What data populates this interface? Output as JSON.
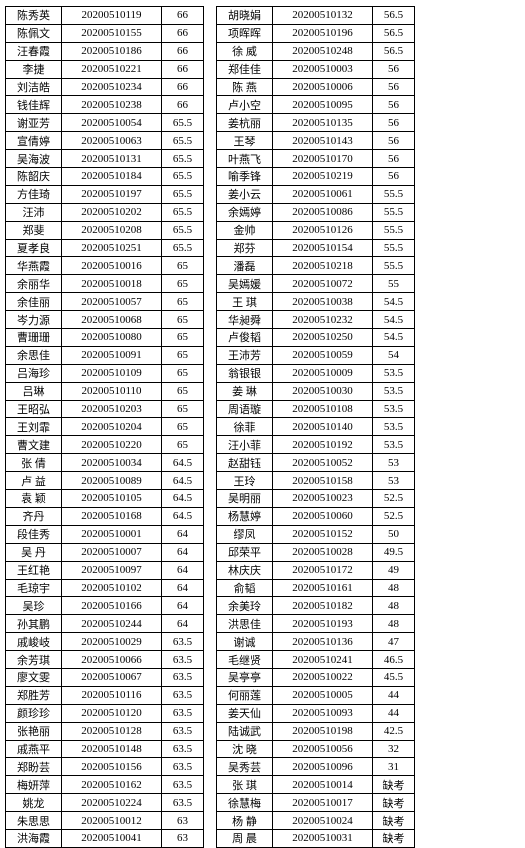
{
  "left": [
    {
      "name": "陈秀英",
      "id": "20200510119",
      "score": "66"
    },
    {
      "name": "陈佩文",
      "id": "20200510155",
      "score": "66"
    },
    {
      "name": "汪春霞",
      "id": "20200510186",
      "score": "66"
    },
    {
      "name": "李捷",
      "id": "20200510221",
      "score": "66"
    },
    {
      "name": "刘洁皓",
      "id": "20200510234",
      "score": "66"
    },
    {
      "name": "钱佳辉",
      "id": "20200510238",
      "score": "66"
    },
    {
      "name": "谢亚芳",
      "id": "20200510054",
      "score": "65.5"
    },
    {
      "name": "宣倩婷",
      "id": "20200510063",
      "score": "65.5"
    },
    {
      "name": "吴海波",
      "id": "20200510131",
      "score": "65.5"
    },
    {
      "name": "陈韶庆",
      "id": "20200510184",
      "score": "65.5"
    },
    {
      "name": "方佳琦",
      "id": "20200510197",
      "score": "65.5"
    },
    {
      "name": "汪沛",
      "id": "20200510202",
      "score": "65.5"
    },
    {
      "name": "郑斐",
      "id": "20200510208",
      "score": "65.5"
    },
    {
      "name": "夏孝良",
      "id": "20200510251",
      "score": "65.5"
    },
    {
      "name": "华燕霞",
      "id": "20200510016",
      "score": "65"
    },
    {
      "name": "余丽华",
      "id": "20200510018",
      "score": "65"
    },
    {
      "name": "余佳丽",
      "id": "20200510057",
      "score": "65"
    },
    {
      "name": "岑力源",
      "id": "20200510068",
      "score": "65"
    },
    {
      "name": "曹珊珊",
      "id": "20200510080",
      "score": "65"
    },
    {
      "name": "余思佳",
      "id": "20200510091",
      "score": "65"
    },
    {
      "name": "吕海珍",
      "id": "20200510109",
      "score": "65"
    },
    {
      "name": "吕琳",
      "id": "20200510110",
      "score": "65"
    },
    {
      "name": "王昭弘",
      "id": "20200510203",
      "score": "65"
    },
    {
      "name": "王刘霏",
      "id": "20200510204",
      "score": "65"
    },
    {
      "name": "曹文建",
      "id": "20200510220",
      "score": "65"
    },
    {
      "name": "张 倩",
      "id": "20200510034",
      "score": "64.5"
    },
    {
      "name": "卢 益",
      "id": "20200510089",
      "score": "64.5"
    },
    {
      "name": "袁 颖",
      "id": "20200510105",
      "score": "64.5"
    },
    {
      "name": "齐丹",
      "id": "20200510168",
      "score": "64.5"
    },
    {
      "name": "段佳秀",
      "id": "20200510001",
      "score": "64"
    },
    {
      "name": "吴 丹",
      "id": "20200510007",
      "score": "64"
    },
    {
      "name": "王红艳",
      "id": "20200510097",
      "score": "64"
    },
    {
      "name": "毛琼宇",
      "id": "20200510102",
      "score": "64"
    },
    {
      "name": "吴珍",
      "id": "20200510166",
      "score": "64"
    },
    {
      "name": "孙其鹏",
      "id": "20200510244",
      "score": "64"
    },
    {
      "name": "戚峻岐",
      "id": "20200510029",
      "score": "63.5"
    },
    {
      "name": "余芳琪",
      "id": "20200510066",
      "score": "63.5"
    },
    {
      "name": "廖文雯",
      "id": "20200510067",
      "score": "63.5"
    },
    {
      "name": "郑胜芳",
      "id": "20200510116",
      "score": "63.5"
    },
    {
      "name": "颜珍珍",
      "id": "20200510120",
      "score": "63.5"
    },
    {
      "name": "张艳丽",
      "id": "20200510128",
      "score": "63.5"
    },
    {
      "name": "戚燕平",
      "id": "20200510148",
      "score": "63.5"
    },
    {
      "name": "郑盼芸",
      "id": "20200510156",
      "score": "63.5"
    },
    {
      "name": "梅妍萍",
      "id": "20200510162",
      "score": "63.5"
    },
    {
      "name": "姚龙",
      "id": "20200510224",
      "score": "63.5"
    },
    {
      "name": "朱思思",
      "id": "20200510012",
      "score": "63"
    },
    {
      "name": "洪海霞",
      "id": "20200510041",
      "score": "63"
    }
  ],
  "right": [
    {
      "name": "胡晓娟",
      "id": "20200510132",
      "score": "56.5"
    },
    {
      "name": "项晖晖",
      "id": "20200510196",
      "score": "56.5"
    },
    {
      "name": "徐 威",
      "id": "20200510248",
      "score": "56.5"
    },
    {
      "name": "郑佳佳",
      "id": "20200510003",
      "score": "56"
    },
    {
      "name": "陈 燕",
      "id": "20200510006",
      "score": "56"
    },
    {
      "name": "卢小空",
      "id": "20200510095",
      "score": "56"
    },
    {
      "name": "姜杭丽",
      "id": "20200510135",
      "score": "56"
    },
    {
      "name": "王琴",
      "id": "20200510143",
      "score": "56"
    },
    {
      "name": "叶燕飞",
      "id": "20200510170",
      "score": "56"
    },
    {
      "name": "喻季锋",
      "id": "20200510219",
      "score": "56"
    },
    {
      "name": "姜小云",
      "id": "20200510061",
      "score": "55.5"
    },
    {
      "name": "余嫣婷",
      "id": "20200510086",
      "score": "55.5"
    },
    {
      "name": "金帅",
      "id": "20200510126",
      "score": "55.5"
    },
    {
      "name": "郑芬",
      "id": "20200510154",
      "score": "55.5"
    },
    {
      "name": "潘磊",
      "id": "20200510218",
      "score": "55.5"
    },
    {
      "name": "吴嫣媛",
      "id": "20200510072",
      "score": "55"
    },
    {
      "name": "王 琪",
      "id": "20200510038",
      "score": "54.5"
    },
    {
      "name": "华昶舜",
      "id": "20200510232",
      "score": "54.5"
    },
    {
      "name": "卢俊韬",
      "id": "20200510250",
      "score": "54.5"
    },
    {
      "name": "王沛芳",
      "id": "20200510059",
      "score": "54"
    },
    {
      "name": "翁银银",
      "id": "20200510009",
      "score": "53.5"
    },
    {
      "name": "姜 琳",
      "id": "20200510030",
      "score": "53.5"
    },
    {
      "name": "周语璇",
      "id": "20200510108",
      "score": "53.5"
    },
    {
      "name": "徐菲",
      "id": "20200510140",
      "score": "53.5"
    },
    {
      "name": "汪小菲",
      "id": "20200510192",
      "score": "53.5"
    },
    {
      "name": "赵甜钰",
      "id": "20200510052",
      "score": "53"
    },
    {
      "name": "王玲",
      "id": "20200510158",
      "score": "53"
    },
    {
      "name": "吴明丽",
      "id": "20200510023",
      "score": "52.5"
    },
    {
      "name": "杨慧婷",
      "id": "20200510060",
      "score": "52.5"
    },
    {
      "name": "缪凤",
      "id": "20200510152",
      "score": "50"
    },
    {
      "name": "邱荣平",
      "id": "20200510028",
      "score": "49.5"
    },
    {
      "name": "林庆庆",
      "id": "20200510172",
      "score": "49"
    },
    {
      "name": "俞韬",
      "id": "20200510161",
      "score": "48"
    },
    {
      "name": "余美玲",
      "id": "20200510182",
      "score": "48"
    },
    {
      "name": "洪思佳",
      "id": "20200510193",
      "score": "48"
    },
    {
      "name": "谢诚",
      "id": "20200510136",
      "score": "47"
    },
    {
      "name": "毛继贤",
      "id": "20200510241",
      "score": "46.5"
    },
    {
      "name": "吴亭亭",
      "id": "20200510022",
      "score": "45.5"
    },
    {
      "name": "何丽莲",
      "id": "20200510005",
      "score": "44"
    },
    {
      "name": "姜天仙",
      "id": "20200510093",
      "score": "44"
    },
    {
      "name": "陆诚武",
      "id": "20200510198",
      "score": "42.5"
    },
    {
      "name": "沈 晓",
      "id": "20200510056",
      "score": "32"
    },
    {
      "name": "吴秀芸",
      "id": "20200510096",
      "score": "31"
    },
    {
      "name": "张 琪",
      "id": "20200510014",
      "score": "缺考"
    },
    {
      "name": "徐慧梅",
      "id": "20200510017",
      "score": "缺考"
    },
    {
      "name": "杨 静",
      "id": "20200510024",
      "score": "缺考"
    },
    {
      "name": "周 晨",
      "id": "20200510031",
      "score": "缺考"
    }
  ]
}
